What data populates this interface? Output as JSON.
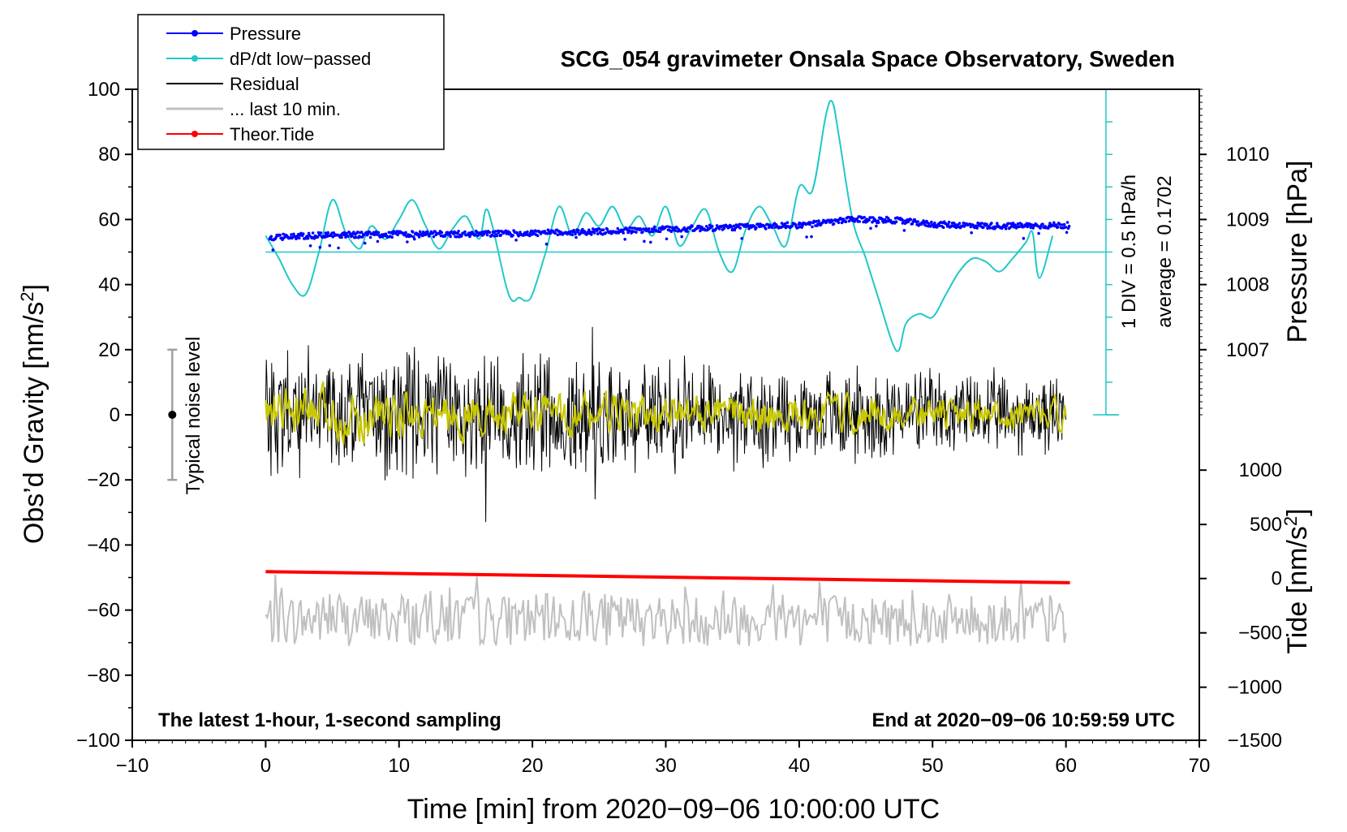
{
  "chart_data": {
    "type": "line",
    "title": "SCG_054 gravimeter Onsala Space Observatory, Sweden",
    "xlabel": "Time [min] from 2020−09−06 10:00:00 UTC",
    "ylabel_main": "Obs’d Gravity [nm/s",
    "ylabel_sup": "2",
    "ylabel_close": "]",
    "ylabel_pressure": "Pressure [hPa]",
    "ylabel_tide": "Tide [nm/s",
    "ylabel_tide_sup": "2",
    "ylabel_tide_close": "]",
    "xlim": [
      -10,
      70
    ],
    "ylim": [
      -100,
      100
    ],
    "x_ticks": [
      -10,
      0,
      10,
      20,
      30,
      40,
      50,
      60,
      70
    ],
    "x_tick_labels": [
      "−10",
      "0",
      "10",
      "20",
      "30",
      "40",
      "50",
      "60",
      "70"
    ],
    "y_ticks": [
      100,
      80,
      60,
      40,
      20,
      0,
      -20,
      -40,
      -60,
      -80,
      -100
    ],
    "y_tick_labels": [
      "100",
      "80",
      "60",
      "40",
      "20",
      "0",
      "−20",
      "−40",
      "−60",
      "−80",
      "−100"
    ],
    "pressure_axis": {
      "ticks": [
        1010,
        1009,
        1008,
        1007
      ],
      "tick_labels": [
        "1010",
        "1009",
        "1008",
        "1007"
      ],
      "gravity_equiv": [
        80,
        60,
        40,
        20
      ]
    },
    "tide_axis": {
      "ticks": [
        1000,
        500,
        0,
        -500,
        -1000,
        -1500
      ],
      "tick_labels": [
        "1000",
        "500",
        "0",
        "−500",
        "−1000",
        "−1500"
      ],
      "gravity_equiv": [
        -17,
        -33.7,
        -50.3,
        -67,
        -83.7,
        -100
      ]
    },
    "dpdt_scale": {
      "label": "1 DIV = 0.5 hPa/h",
      "average_label": "average = 0.1702",
      "x": 63,
      "range": [
        0,
        100
      ],
      "zero_line": 50
    },
    "noise_bar": {
      "label": "Typical noise level",
      "x": -7,
      "center": 0,
      "range": [
        -20,
        20
      ]
    },
    "annotation_left": "The latest 1-hour, 1-second sampling",
    "annotation_right": "End at 2020−09−06 10:59:59 UTC",
    "legend": [
      {
        "label": "Pressure",
        "color": "#0000ff",
        "marker": "dot"
      },
      {
        "label": "dP/dt low−passed",
        "color": "#20c8c8",
        "marker": "dot"
      },
      {
        "label": "Residual",
        "color": "#000000",
        "marker": "none"
      },
      {
        "label": "... last 10 min.",
        "color": "#c0c0c0",
        "marker": "none"
      },
      {
        "label": "Theor.Tide",
        "color": "#ff0000",
        "marker": "dot"
      }
    ],
    "series": [
      {
        "name": "Pressure",
        "color": "#0000ff",
        "x": [
          0,
          5,
          10,
          15,
          20,
          25,
          30,
          35,
          40,
          42,
          44,
          47,
          50,
          55,
          60
        ],
        "values": [
          54.5,
          55.2,
          55.5,
          55.5,
          55.8,
          56.3,
          57.0,
          57.6,
          58.3,
          59.0,
          60.0,
          59.8,
          58.5,
          58.0,
          58.2
        ]
      },
      {
        "name": "dP/dt low-passed",
        "color": "#20c8c8",
        "x": [
          0,
          1,
          2,
          3,
          4,
          5,
          6,
          7,
          7.5,
          8,
          9,
          10,
          11,
          12,
          13,
          14,
          15,
          16,
          16.5,
          17,
          18,
          18.5,
          19,
          19.5,
          20,
          21,
          22,
          23,
          24,
          25,
          26,
          27,
          28,
          29,
          30,
          31,
          32,
          33,
          34,
          35,
          36,
          37,
          38,
          39,
          40,
          41,
          42,
          42.5,
          43,
          44,
          45,
          46,
          47,
          47.5,
          48,
          49,
          50,
          51,
          52,
          53,
          54,
          55,
          56,
          57,
          57.5,
          58,
          59
        ],
        "values": [
          55,
          48,
          40,
          37,
          50,
          66,
          56,
          51,
          55,
          58,
          54,
          60,
          66,
          58,
          51,
          57,
          61,
          54,
          63,
          58,
          40,
          35,
          36,
          35,
          37,
          50,
          64,
          55,
          62,
          58,
          64,
          57,
          61,
          55,
          64,
          52,
          58,
          63,
          50,
          44,
          57,
          64,
          58,
          52,
          70,
          69,
          92,
          96,
          85,
          60,
          48,
          35,
          22,
          20,
          28,
          31,
          30,
          37,
          44,
          48,
          47,
          44,
          48,
          53,
          56,
          42,
          55
        ]
      },
      {
        "name": "Residual",
        "color": "#000000",
        "x_range": [
          0,
          60
        ],
        "amplitude_min": -33,
        "amplitude_max": 27
      },
      {
        "name": "Residual smoothed",
        "color": "#c8c800",
        "x_range": [
          0,
          60
        ]
      },
      {
        "name": "... last 10 min.",
        "color": "#c0c0c0",
        "x_range": [
          0,
          60
        ],
        "center": -63
      },
      {
        "name": "Theor.Tide",
        "color": "#ff0000",
        "x": [
          0,
          60.3
        ],
        "values": [
          -48.2,
          -51.6
        ]
      }
    ]
  }
}
